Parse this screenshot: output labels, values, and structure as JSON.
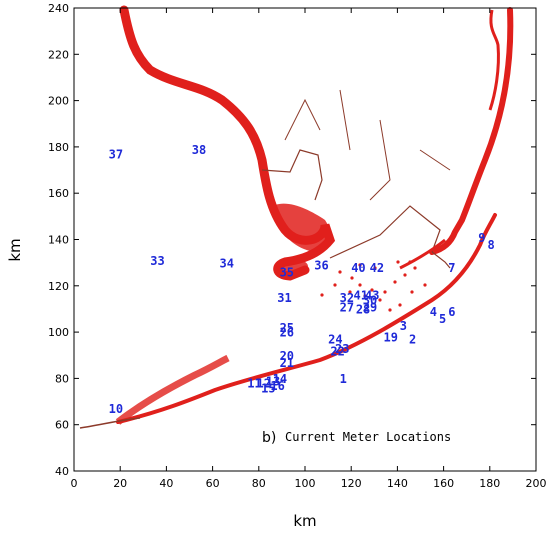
{
  "figure": {
    "caption_letter": "b)",
    "caption_text": "Current Meter Locations",
    "xlabel": "km",
    "ylabel": "km"
  },
  "axes": {
    "xlim": [
      0,
      200
    ],
    "ylim": [
      40,
      240
    ],
    "x_ticks": [
      "0",
      "20",
      "40",
      "60",
      "80",
      "100",
      "120",
      "140",
      "160",
      "180",
      "200"
    ],
    "y_ticks": [
      "40",
      "60",
      "80",
      "100",
      "120",
      "140",
      "160",
      "180",
      "200",
      "220",
      "240"
    ]
  },
  "colors": {
    "land": "#e0201c",
    "coastline": "#8c3a2a",
    "station_label": "#1f2ad8"
  },
  "stations": [
    {
      "id": "1",
      "x": 115,
      "y": 78
    },
    {
      "id": "2",
      "x": 145,
      "y": 95
    },
    {
      "id": "3",
      "x": 141,
      "y": 101
    },
    {
      "id": "4",
      "x": 154,
      "y": 107
    },
    {
      "id": "5",
      "x": 158,
      "y": 104
    },
    {
      "id": "6",
      "x": 162,
      "y": 107
    },
    {
      "id": "7",
      "x": 162,
      "y": 126
    },
    {
      "id": "8",
      "x": 179,
      "y": 136
    },
    {
      "id": "9",
      "x": 175,
      "y": 139
    },
    {
      "id": "10",
      "x": 15,
      "y": 65
    },
    {
      "id": "11",
      "x": 75,
      "y": 76
    },
    {
      "id": "12",
      "x": 79,
      "y": 76
    },
    {
      "id": "13",
      "x": 83,
      "y": 77
    },
    {
      "id": "14",
      "x": 86,
      "y": 78
    },
    {
      "id": "15",
      "x": 81,
      "y": 74
    },
    {
      "id": "16",
      "x": 85,
      "y": 75
    },
    {
      "id": "19",
      "x": 134,
      "y": 96
    },
    {
      "id": "20",
      "x": 89,
      "y": 88
    },
    {
      "id": "21",
      "x": 89,
      "y": 85
    },
    {
      "id": "22",
      "x": 111,
      "y": 90
    },
    {
      "id": "23",
      "x": 113,
      "y": 91
    },
    {
      "id": "24",
      "x": 110,
      "y": 95
    },
    {
      "id": "25",
      "x": 89,
      "y": 100
    },
    {
      "id": "26",
      "x": 89,
      "y": 98
    },
    {
      "id": "27",
      "x": 115,
      "y": 109
    },
    {
      "id": "28",
      "x": 122,
      "y": 108
    },
    {
      "id": "29",
      "x": 125,
      "y": 109
    },
    {
      "id": "30",
      "x": 125,
      "y": 112
    },
    {
      "id": "31",
      "x": 88,
      "y": 113
    },
    {
      "id": "32",
      "x": 115,
      "y": 113
    },
    {
      "id": "33",
      "x": 33,
      "y": 129
    },
    {
      "id": "34",
      "x": 63,
      "y": 128
    },
    {
      "id": "35",
      "x": 89,
      "y": 124
    },
    {
      "id": "36",
      "x": 104,
      "y": 127
    },
    {
      "id": "37",
      "x": 15,
      "y": 175
    },
    {
      "id": "38",
      "x": 51,
      "y": 177
    },
    {
      "id": "40",
      "x": 120,
      "y": 126
    },
    {
      "id": "41",
      "x": 121,
      "y": 114
    },
    {
      "id": "42",
      "x": 128,
      "y": 126
    },
    {
      "id": "43",
      "x": 126,
      "y": 114
    }
  ]
}
